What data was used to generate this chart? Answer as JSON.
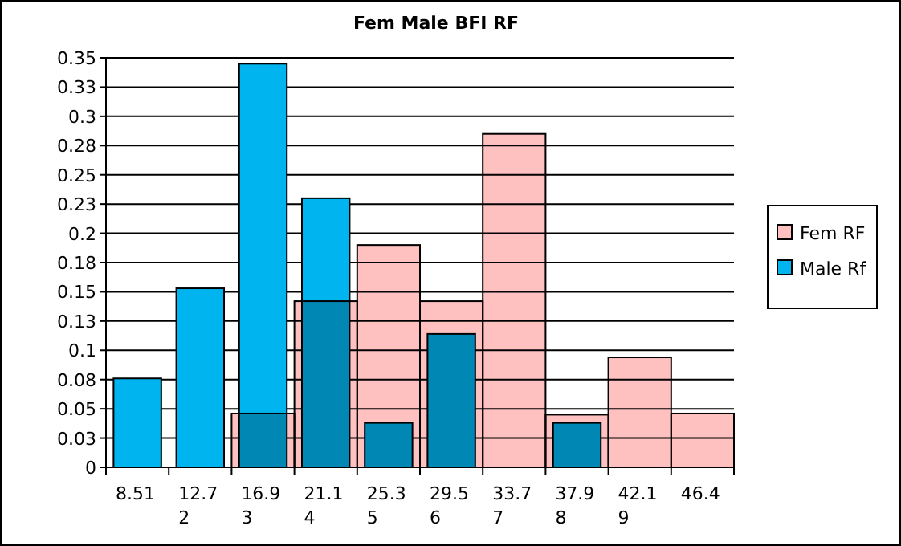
{
  "chart_data": {
    "type": "bar",
    "title": "Fem Male BFI RF",
    "categories": [
      "8.51",
      "12.72",
      "16.93",
      "21.14",
      "25.35",
      "29.56",
      "33.77",
      "37.98",
      "42.19",
      "46.4"
    ],
    "series": [
      {
        "name": "Fem RF",
        "color": "#ffc0c0",
        "values": [
          0,
          0,
          0.046,
          0.142,
          0.19,
          0.142,
          0.285,
          0.045,
          0.094,
          0.046
        ]
      },
      {
        "name": "Male Rf",
        "color": "#00b4f0",
        "values": [
          0.076,
          0.153,
          0.345,
          0.23,
          0.038,
          0.114,
          0,
          0.038,
          0,
          0
        ]
      }
    ],
    "ylim": [
      0,
      0.35
    ],
    "yticks": [
      0,
      {
        "value": 0.025,
        "label": "0.03"
      },
      0.05,
      {
        "value": 0.075,
        "label": "0.08"
      },
      0.1,
      {
        "value": 0.125,
        "label": "0.13"
      },
      0.15,
      {
        "value": 0.175,
        "label": "0.18"
      },
      0.2,
      {
        "value": 0.225,
        "label": "0.23"
      },
      0.25,
      {
        "value": 0.275,
        "label": "0.28"
      },
      0.3,
      {
        "value": 0.325,
        "label": "0.33"
      },
      0.35
    ],
    "grid": "y",
    "legend": "right"
  }
}
